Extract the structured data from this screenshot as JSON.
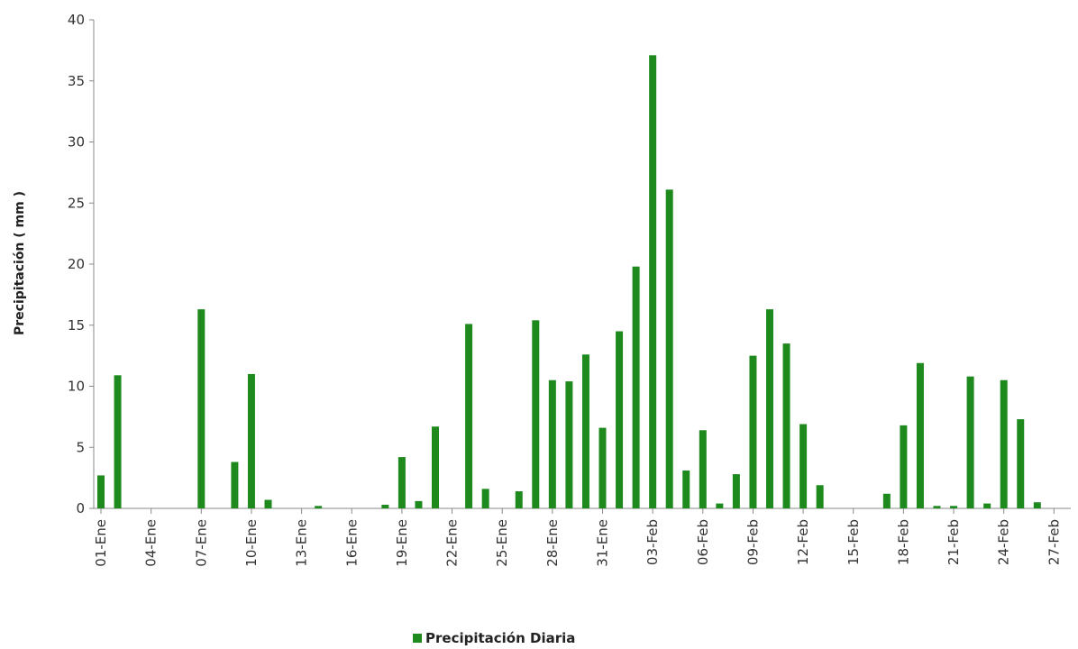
{
  "chart_data": {
    "type": "bar",
    "ylabel": "Precipitación ( mm )",
    "xlabel": "",
    "ylim": [
      0,
      40
    ],
    "yticks": [
      0,
      5,
      10,
      15,
      20,
      25,
      30,
      35,
      40
    ],
    "grid": false,
    "legend_position": "bottom",
    "color": "#1e8a1e",
    "x_tick_labels": [
      "01-Ene",
      "04-Ene",
      "07-Ene",
      "10-Ene",
      "13-Ene",
      "16-Ene",
      "19-Ene",
      "22-Ene",
      "25-Ene",
      "28-Ene",
      "31-Ene",
      "03-Feb",
      "06-Feb",
      "09-Feb",
      "12-Feb",
      "15-Feb",
      "18-Feb",
      "21-Feb",
      "24-Feb",
      "27-Feb"
    ],
    "categories": [
      "01-Ene",
      "02-Ene",
      "03-Ene",
      "04-Ene",
      "05-Ene",
      "06-Ene",
      "07-Ene",
      "08-Ene",
      "09-Ene",
      "10-Ene",
      "11-Ene",
      "12-Ene",
      "13-Ene",
      "14-Ene",
      "15-Ene",
      "16-Ene",
      "17-Ene",
      "18-Ene",
      "19-Ene",
      "20-Ene",
      "21-Ene",
      "22-Ene",
      "23-Ene",
      "24-Ene",
      "25-Ene",
      "26-Ene",
      "27-Ene",
      "28-Ene",
      "29-Ene",
      "30-Ene",
      "31-Ene",
      "01-Feb",
      "02-Feb",
      "03-Feb",
      "04-Feb",
      "05-Feb",
      "06-Feb",
      "07-Feb",
      "08-Feb",
      "09-Feb",
      "10-Feb",
      "11-Feb",
      "12-Feb",
      "13-Feb",
      "14-Feb",
      "15-Feb",
      "16-Feb",
      "17-Feb",
      "18-Feb",
      "19-Feb",
      "20-Feb",
      "21-Feb",
      "22-Feb",
      "23-Feb",
      "24-Feb",
      "25-Feb",
      "26-Feb",
      "27-Feb",
      "28-Feb"
    ],
    "series": [
      {
        "name": "Precipitación Diaria",
        "values": [
          2.7,
          10.9,
          0,
          0,
          0,
          0,
          16.3,
          0,
          3.8,
          11.0,
          0.7,
          0,
          0,
          0.2,
          0,
          0,
          0,
          0.3,
          4.2,
          0.6,
          6.7,
          0,
          15.1,
          1.6,
          0,
          1.4,
          15.4,
          10.5,
          10.4,
          12.6,
          6.6,
          14.5,
          19.8,
          37.1,
          26.1,
          3.1,
          6.4,
          0.4,
          2.8,
          12.5,
          16.3,
          13.5,
          6.9,
          1.9,
          0,
          0,
          0,
          1.2,
          6.8,
          11.9,
          0.2,
          0.2,
          10.8,
          0.4,
          10.5,
          7.3,
          0.5,
          0,
          0
        ]
      }
    ]
  }
}
